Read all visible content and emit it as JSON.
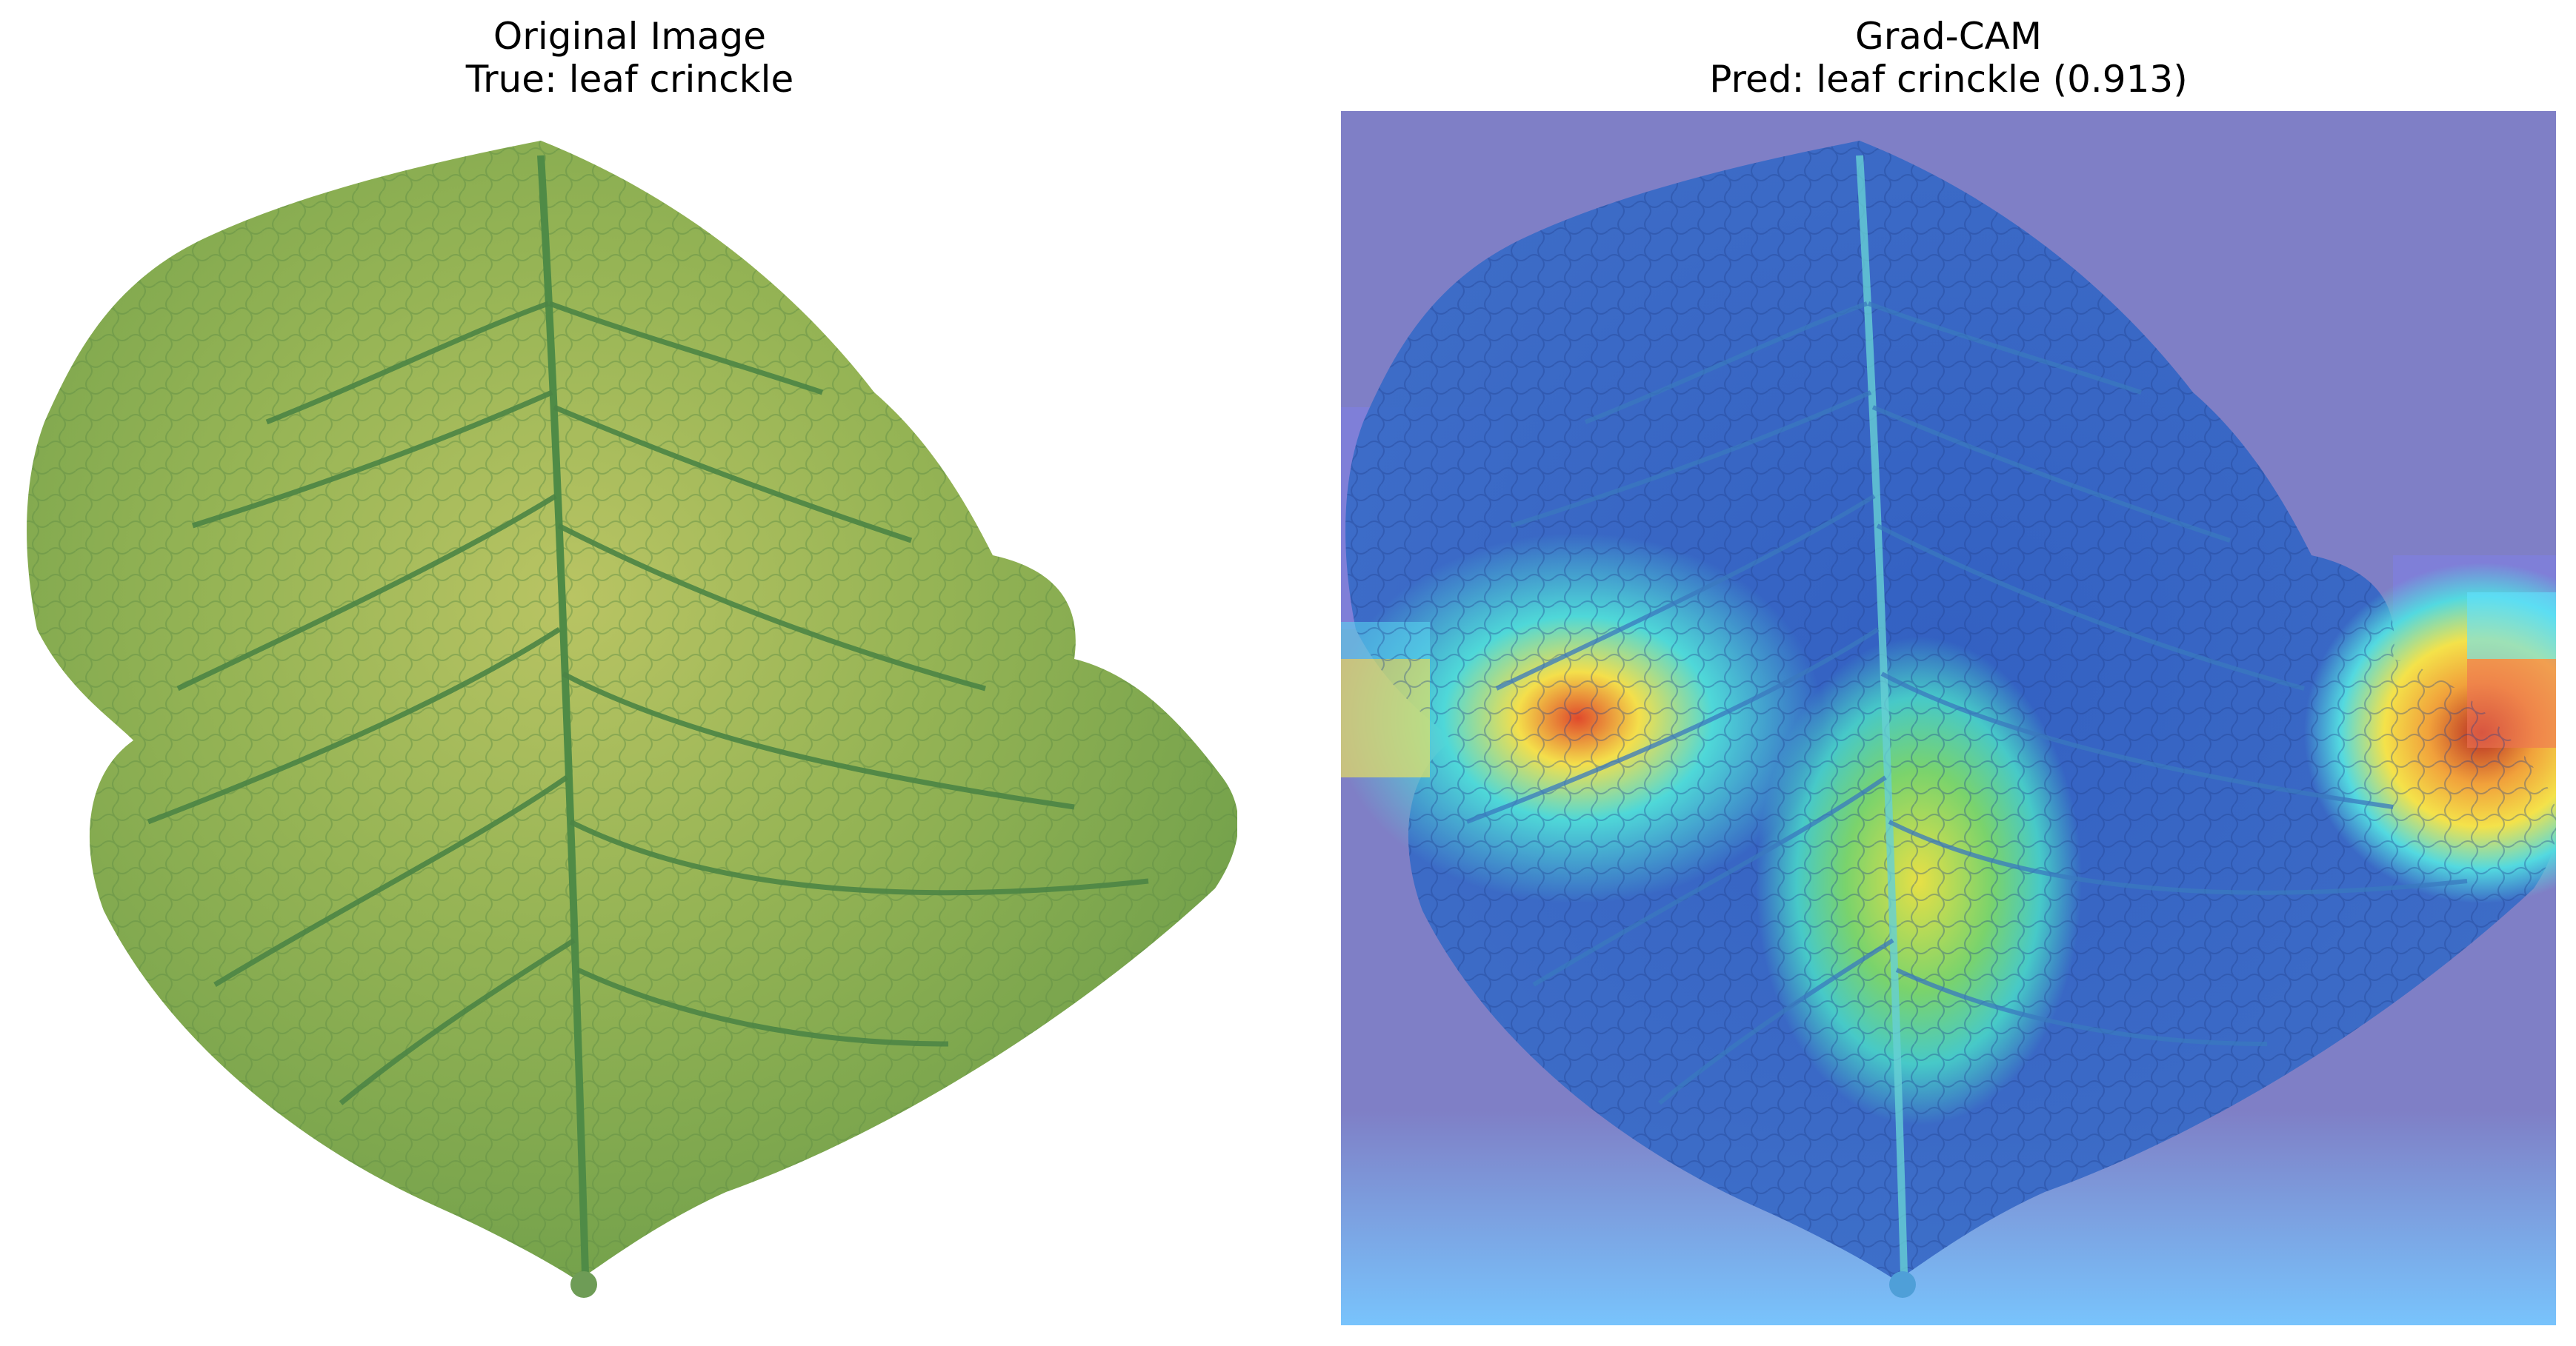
{
  "panels": {
    "original": {
      "title_line1": "Original Image",
      "title_line2": "True: leaf crinckle"
    },
    "gradcam": {
      "title_line1": "Grad-CAM",
      "title_line2": "Pred: leaf crinckle (0.913)"
    }
  },
  "colors": {
    "leaf_base": "#7ea94a",
    "leaf_light": "#b7c66a",
    "leaf_vein": "#3f7a3d",
    "cam_background": "#7f7fc7",
    "cam_blue": "#3b5bd6",
    "cam_cyan": "#44d7e6",
    "cam_yellow": "#f4e04a",
    "cam_red": "#d1392b"
  }
}
